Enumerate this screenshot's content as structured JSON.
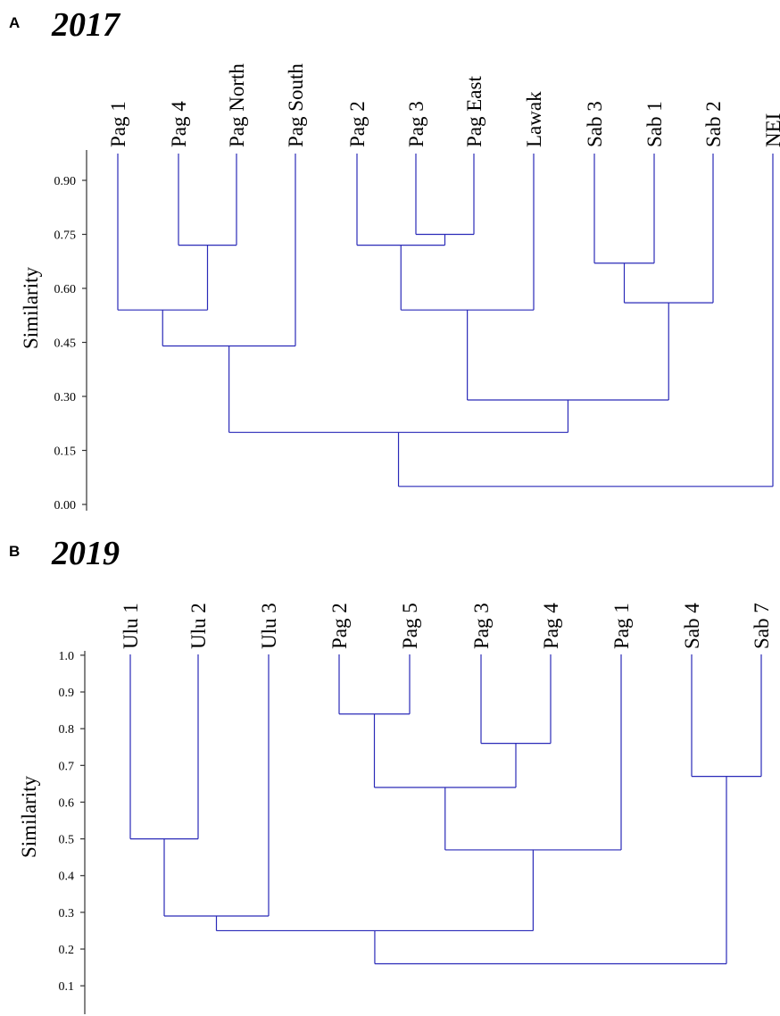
{
  "chart_data": [
    {
      "type": "dendrogram",
      "panel": "A",
      "year": "2017",
      "ylabel": "Similarity",
      "ylim": [
        0.0,
        0.9
      ],
      "yticks": [
        "0.90",
        "0.75",
        "0.60",
        "0.45",
        "0.30",
        "0.15",
        "0.00"
      ],
      "leaves": [
        "Pag 1",
        "Pag 4",
        "Pag North",
        "Pag South",
        "Pag 2",
        "Pag 3",
        "Pag East",
        "Lawak",
        "Sab 3",
        "Sab 1",
        "Sab 2",
        "NEI"
      ],
      "merges": [
        {
          "a": "Pag 4",
          "b": "Pag North",
          "height": 0.72
        },
        {
          "a": "Pag 1",
          "b": 0,
          "height": 0.54
        },
        {
          "a": 1,
          "b": "Pag South",
          "height": 0.44
        },
        {
          "a": "Pag 3",
          "b": "Pag East",
          "height": 0.75
        },
        {
          "a": "Pag 2",
          "b": 3,
          "height": 0.72
        },
        {
          "a": 4,
          "b": "Lawak",
          "height": 0.54
        },
        {
          "a": "Sab 3",
          "b": "Sab 1",
          "height": 0.67
        },
        {
          "a": 6,
          "b": "Sab 2",
          "height": 0.56
        },
        {
          "a": 5,
          "b": 7,
          "height": 0.29
        },
        {
          "a": 2,
          "b": 8,
          "height": 0.2
        },
        {
          "a": 9,
          "b": "NEI",
          "height": 0.05
        }
      ]
    },
    {
      "type": "dendrogram",
      "panel": "B",
      "year": "2019",
      "ylabel": "Similarity",
      "ylim": [
        0.1,
        1.0
      ],
      "yticks": [
        "1.0",
        "0.9",
        "0.8",
        "0.7",
        "0.6",
        "0.5",
        "0.4",
        "0.3",
        "0.2",
        "0.1"
      ],
      "leaves": [
        "Ulu 1",
        "Ulu 2",
        "Ulu 3",
        "Pag 2",
        "Pag 5",
        "Pag 3",
        "Pag 4",
        "Pag 1",
        "Sab 4",
        "Sab 7"
      ],
      "merges": [
        {
          "a": "Ulu 1",
          "b": "Ulu 2",
          "height": 0.5
        },
        {
          "a": 0,
          "b": "Ulu 3",
          "height": 0.29
        },
        {
          "a": "Pag 2",
          "b": "Pag 5",
          "height": 0.84
        },
        {
          "a": "Pag 3",
          "b": "Pag 4",
          "height": 0.76
        },
        {
          "a": 2,
          "b": 3,
          "height": 0.64
        },
        {
          "a": 4,
          "b": "Pag 1",
          "height": 0.47
        },
        {
          "a": 1,
          "b": 5,
          "height": 0.25
        },
        {
          "a": "Sab 4",
          "b": "Sab 7",
          "height": 0.67
        },
        {
          "a": 6,
          "b": 7,
          "height": 0.16
        }
      ]
    }
  ],
  "colors": {
    "branch": "#2a2ab8",
    "axis": "#333333"
  }
}
